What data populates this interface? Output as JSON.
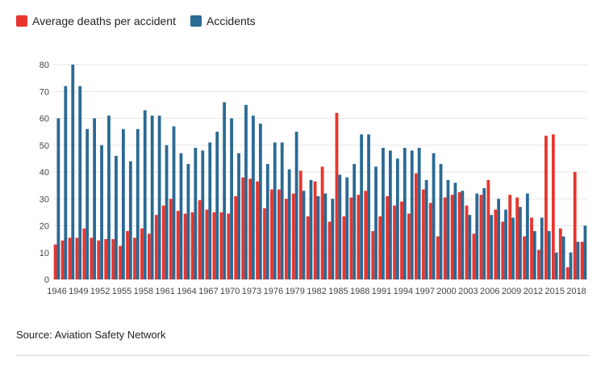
{
  "chart_data": {
    "type": "bar",
    "categories": [
      "1946",
      null,
      null,
      "1949",
      null,
      null,
      "1952",
      null,
      null,
      "1955",
      null,
      null,
      "1958",
      null,
      null,
      "1961",
      null,
      null,
      "1964",
      null,
      null,
      "1967",
      null,
      null,
      "1970",
      null,
      null,
      "1973",
      null,
      null,
      "1976",
      null,
      null,
      "1979",
      null,
      null,
      "1982",
      null,
      null,
      "1985",
      null,
      null,
      "1988",
      null,
      null,
      "1991",
      null,
      null,
      "1994",
      null,
      null,
      "1997",
      null,
      null,
      "2000",
      null,
      null,
      "2003",
      null,
      null,
      "2006",
      null,
      null,
      "2009",
      null,
      null,
      "2012",
      null,
      null,
      "2015",
      null,
      null,
      "2018",
      null
    ],
    "series": [
      {
        "name": "Average deaths per accident",
        "color": "#e8352e",
        "values": [
          13,
          14.5,
          15.5,
          15.5,
          19,
          15.5,
          14.5,
          15,
          15,
          12.5,
          18,
          15.5,
          19,
          17,
          24,
          27.5,
          30,
          25.5,
          24.5,
          25,
          29.5,
          26,
          25,
          25,
          24.5,
          31,
          38,
          37.5,
          36.5,
          26.5,
          33.5,
          33.5,
          30,
          32,
          40.5,
          23.5,
          36.5,
          42,
          21.5,
          62,
          23.5,
          30.5,
          31.5,
          33,
          18,
          23.5,
          31,
          27.5,
          29,
          24.5,
          39.5,
          33.5,
          28.5,
          16,
          30.5,
          31.5,
          32.5,
          27.5,
          17,
          31.5,
          37,
          26,
          21.5,
          31.5,
          30.5,
          16,
          23,
          11,
          53.5,
          54,
          19,
          4.5,
          40,
          14
        ]
      },
      {
        "name": "Accidents",
        "color": "#2a6a94",
        "values": [
          60,
          72,
          80,
          72,
          56,
          60,
          50,
          61,
          46,
          56,
          44,
          56,
          63,
          61,
          61,
          50,
          57,
          47,
          43,
          49,
          48,
          51,
          55,
          66,
          60,
          47,
          65,
          61,
          58,
          43,
          51,
          51,
          41,
          55,
          33,
          37,
          31,
          32,
          30,
          39,
          38,
          43,
          54,
          54,
          42,
          49,
          48,
          45,
          49,
          48,
          49,
          37,
          47,
          43,
          37,
          36,
          33,
          24,
          32,
          34,
          24,
          30,
          26,
          23,
          27,
          32,
          18,
          23,
          18,
          10,
          16,
          10,
          14,
          20
        ]
      }
    ],
    "ylim": [
      0,
      80
    ],
    "yticks": [
      0,
      10,
      20,
      30,
      40,
      50,
      60,
      70,
      80
    ],
    "grid": true,
    "legend": "top-left",
    "source": "Source: Aviation Safety Network"
  }
}
